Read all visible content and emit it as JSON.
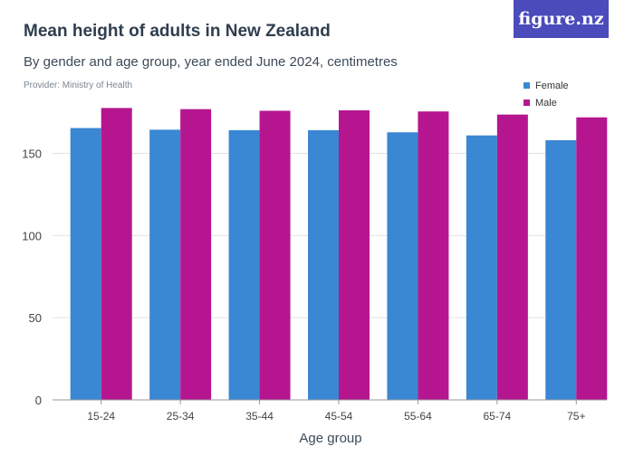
{
  "header": {
    "title": "Mean height of adults in New Zealand",
    "subtitle": "By gender and age group, year ended June 2024, centimetres",
    "provider": "Provider: Ministry of Health",
    "logo_text": "figure.nz"
  },
  "colors": {
    "female": "#3a87d3",
    "male": "#b5168f",
    "logo_bg": "#4b4bbb",
    "grid": "#e3e3e3",
    "axis": "#999999"
  },
  "chart_data": {
    "type": "bar",
    "title": "Mean height of adults in New Zealand",
    "subtitle": "By gender and age group, year ended June 2024, centimetres",
    "xlabel": "Age group",
    "ylabel": "",
    "categories": [
      "15-24",
      "25-34",
      "35-44",
      "45-54",
      "55-64",
      "65-74",
      "75+"
    ],
    "series": [
      {
        "name": "Female",
        "values": [
          165.4,
          164.4,
          164.1,
          164.1,
          162.8,
          160.9,
          158.0
        ]
      },
      {
        "name": "Male",
        "values": [
          177.6,
          176.9,
          175.9,
          176.2,
          175.5,
          173.6,
          171.9
        ]
      }
    ],
    "ylim": [
      0,
      180
    ],
    "yticks": [
      0,
      50,
      100,
      150
    ],
    "grid": true,
    "legend_position": "top-right"
  }
}
